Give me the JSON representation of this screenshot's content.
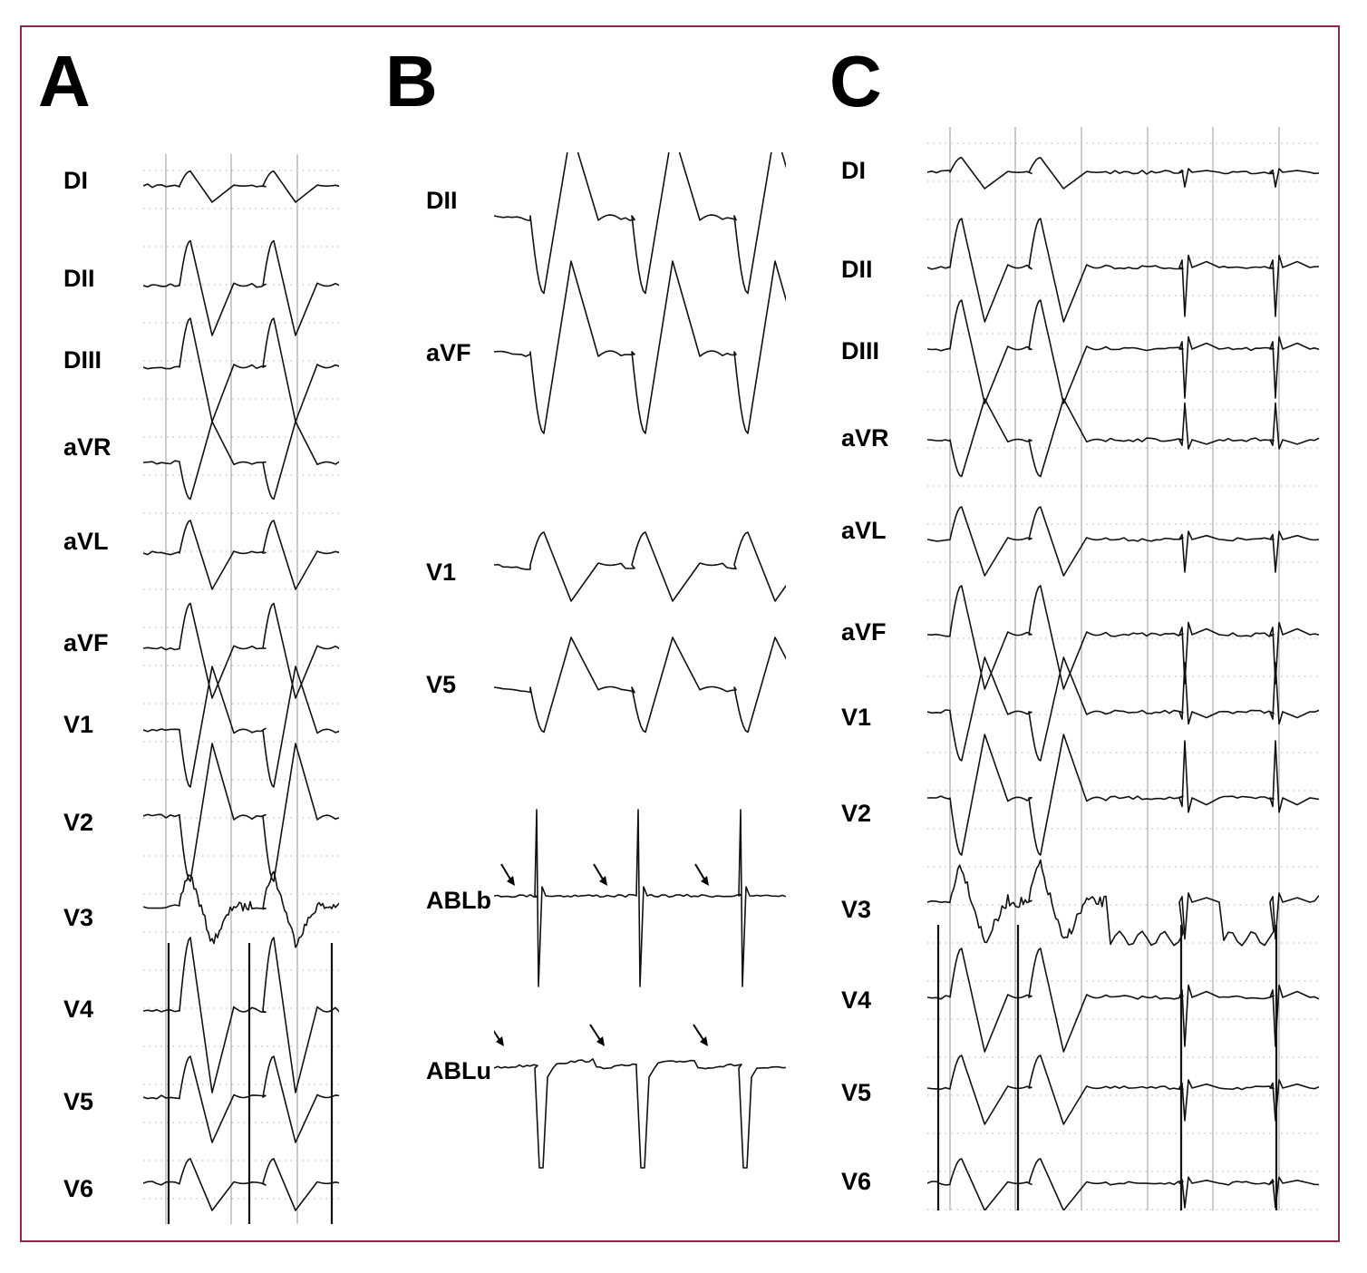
{
  "panels": [
    {
      "letter": "A",
      "leads": [
        "DI",
        "DII",
        "DIII",
        "aVR",
        "aVL",
        "aVF",
        "V1",
        "V2",
        "V3",
        "V4",
        "V5",
        "V6"
      ]
    },
    {
      "letter": "B",
      "leads": [
        "DII",
        "aVF",
        "V1",
        "V5",
        "ABLb",
        "ABLu"
      ]
    },
    {
      "letter": "C",
      "leads": [
        "DI",
        "DII",
        "DIII",
        "aVR",
        "aVL",
        "aVF",
        "V1",
        "V2",
        "V3",
        "V4",
        "V5",
        "V6"
      ]
    }
  ],
  "colors": {
    "frame": "#8a2a46",
    "trace": "#111111",
    "grid": "#9a9a9a"
  }
}
